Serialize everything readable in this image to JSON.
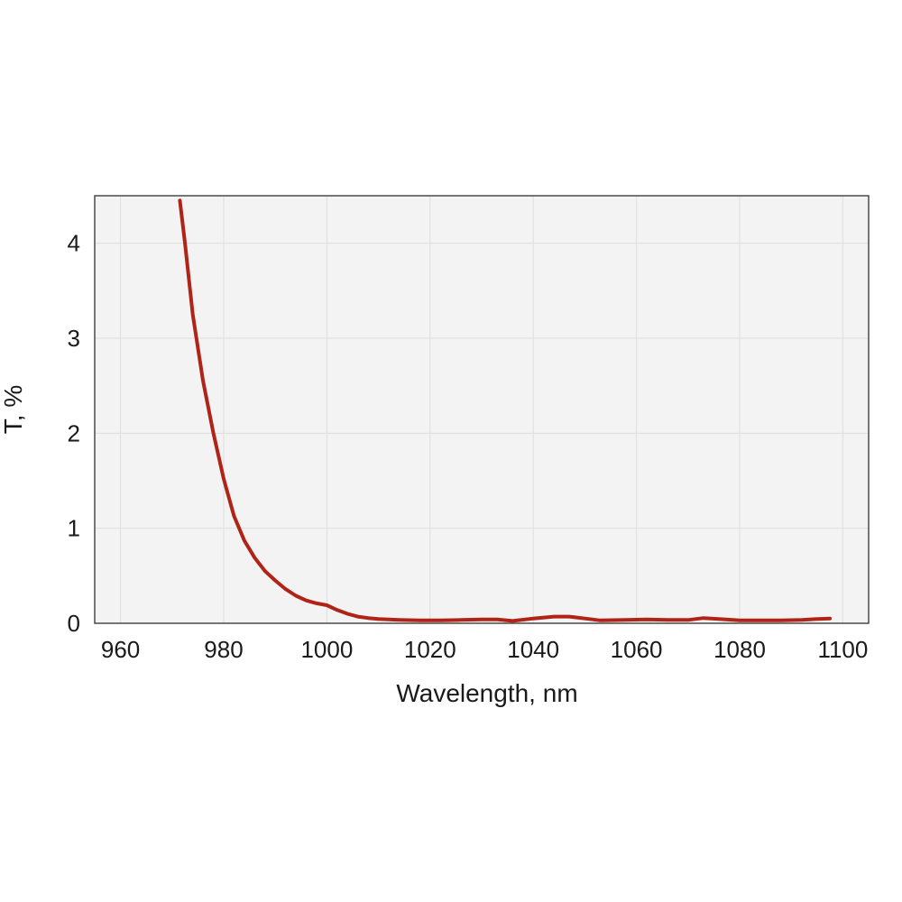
{
  "chart_data": {
    "type": "line",
    "title": "",
    "xlabel": "Wavelength, nm",
    "ylabel": "T, %",
    "xlim": [
      955,
      1105
    ],
    "ylim": [
      0,
      4.5
    ],
    "x_ticks": [
      960,
      980,
      1000,
      1020,
      1040,
      1060,
      1080,
      1100
    ],
    "y_ticks": [
      0,
      1,
      2,
      3,
      4
    ],
    "grid": true,
    "legend": "none",
    "colors": {
      "line": "#b02417",
      "plot_background": "#f3f3f3",
      "grid": "#dedede"
    },
    "series": [
      {
        "points": [
          [
            971.5,
            4.45
          ],
          [
            972.5,
            4.0
          ],
          [
            974,
            3.25
          ],
          [
            976,
            2.55
          ],
          [
            978,
            2.0
          ],
          [
            980,
            1.52
          ],
          [
            982,
            1.13
          ],
          [
            984,
            0.87
          ],
          [
            986,
            0.69
          ],
          [
            988,
            0.55
          ],
          [
            990,
            0.45
          ],
          [
            992,
            0.36
          ],
          [
            994,
            0.29
          ],
          [
            996,
            0.24
          ],
          [
            998,
            0.21
          ],
          [
            1000,
            0.19
          ],
          [
            1002,
            0.14
          ],
          [
            1004,
            0.1
          ],
          [
            1006,
            0.07
          ],
          [
            1008,
            0.055
          ],
          [
            1010,
            0.045
          ],
          [
            1014,
            0.035
          ],
          [
            1018,
            0.03
          ],
          [
            1022,
            0.03
          ],
          [
            1026,
            0.035
          ],
          [
            1030,
            0.04
          ],
          [
            1033,
            0.04
          ],
          [
            1036,
            0.025
          ],
          [
            1040,
            0.05
          ],
          [
            1044,
            0.07
          ],
          [
            1047,
            0.07
          ],
          [
            1050,
            0.05
          ],
          [
            1053,
            0.03
          ],
          [
            1058,
            0.035
          ],
          [
            1062,
            0.04
          ],
          [
            1066,
            0.035
          ],
          [
            1070,
            0.035
          ],
          [
            1073,
            0.055
          ],
          [
            1076,
            0.045
          ],
          [
            1080,
            0.03
          ],
          [
            1084,
            0.03
          ],
          [
            1088,
            0.03
          ],
          [
            1092,
            0.035
          ],
          [
            1095,
            0.045
          ],
          [
            1097.5,
            0.05
          ]
        ]
      }
    ]
  }
}
